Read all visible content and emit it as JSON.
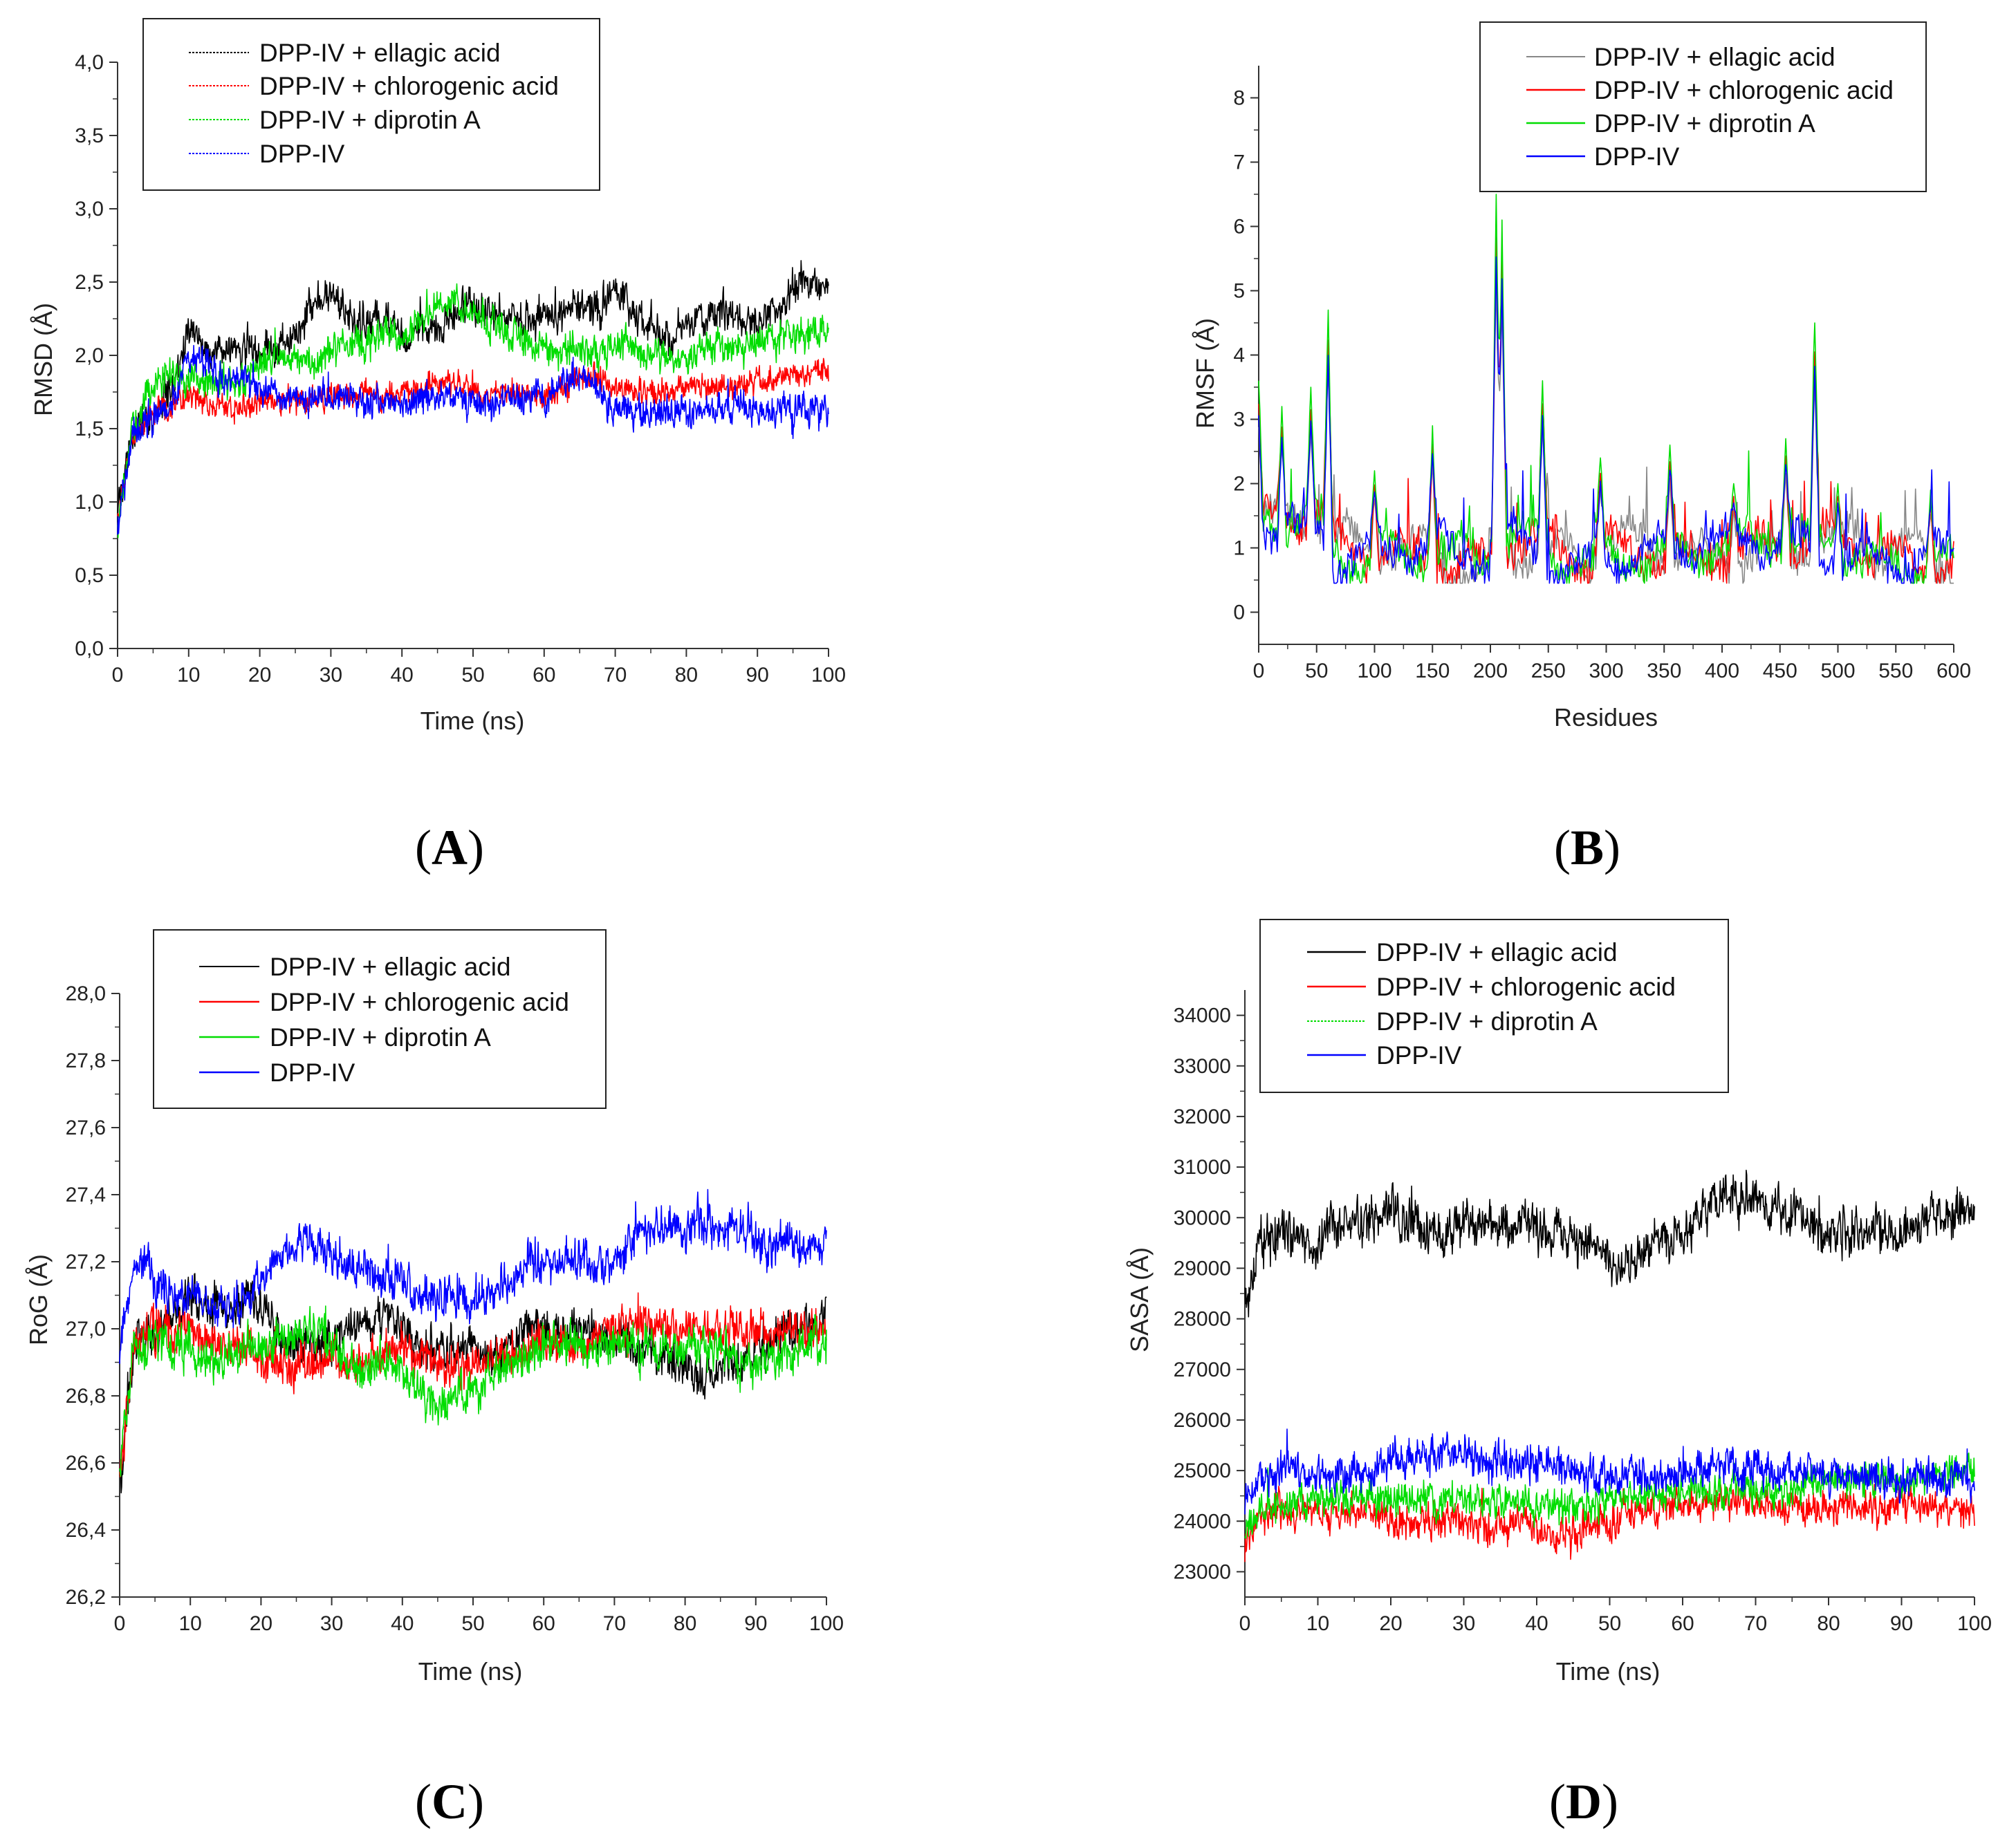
{
  "figure": {
    "panel_labels": [
      {
        "open": "(",
        "letter": "A",
        "close": ")"
      },
      {
        "open": "(",
        "letter": "B",
        "close": ")"
      },
      {
        "open": "(",
        "letter": "C",
        "close": ")"
      },
      {
        "open": "(",
        "letter": "D",
        "close": ")"
      }
    ]
  },
  "chart_data": [
    {
      "id": "A",
      "type": "line",
      "title": "",
      "xlabel": "Time (ns)",
      "ylabel": "RMSD (Å)",
      "xlim": [
        0,
        100
      ],
      "ylim": [
        0.0,
        4.0
      ],
      "xticks": [
        "0",
        "10",
        "20",
        "30",
        "40",
        "50",
        "60",
        "70",
        "80",
        "90",
        "100"
      ],
      "yticks": [
        "0,0",
        "0,5",
        "1,0",
        "1,5",
        "2,0",
        "2,5",
        "3,0",
        "3,5",
        "4,0"
      ],
      "legend": [
        "DPP-IV + ellagic acid",
        "DPP-IV + chlorogenic acid",
        "DPP-IV + diprotin A",
        "DPP-IV"
      ],
      "legend_position": "top-left",
      "x": [
        0,
        2,
        5,
        8,
        10,
        12,
        15,
        18,
        20,
        22,
        25,
        28,
        30,
        32,
        35,
        38,
        40,
        42,
        45,
        48,
        50,
        52,
        55,
        58,
        60,
        62,
        65,
        68,
        70,
        72,
        75,
        78,
        80,
        82,
        85,
        88,
        90,
        92,
        95,
        98,
        100
      ],
      "series": [
        {
          "name": "DPP-IV + ellagic acid",
          "color": "#000000",
          "noise": 0.1,
          "values": [
            0.85,
            1.45,
            1.6,
            1.8,
            2.2,
            2.05,
            2.0,
            2.05,
            2.0,
            2.05,
            2.1,
            2.4,
            2.45,
            2.3,
            2.2,
            2.25,
            2.1,
            2.15,
            2.2,
            2.3,
            2.35,
            2.25,
            2.3,
            2.25,
            2.3,
            2.25,
            2.35,
            2.3,
            2.45,
            2.35,
            2.2,
            2.1,
            2.2,
            2.25,
            2.3,
            2.25,
            2.2,
            2.3,
            2.45,
            2.5,
            2.45
          ]
        },
        {
          "name": "DPP-IV + chlorogenic acid",
          "color": "#ff0000",
          "noise": 0.07,
          "values": [
            0.85,
            1.45,
            1.6,
            1.65,
            1.7,
            1.68,
            1.65,
            1.66,
            1.7,
            1.7,
            1.68,
            1.7,
            1.72,
            1.7,
            1.75,
            1.72,
            1.75,
            1.78,
            1.8,
            1.82,
            1.75,
            1.72,
            1.75,
            1.72,
            1.72,
            1.75,
            1.85,
            1.85,
            1.8,
            1.78,
            1.75,
            1.75,
            1.78,
            1.8,
            1.78,
            1.8,
            1.82,
            1.85,
            1.88,
            1.9,
            1.9
          ]
        },
        {
          "name": "DPP-IV + diprotin A",
          "color": "#00dd00",
          "noise": 0.09,
          "values": [
            0.85,
            1.5,
            1.8,
            1.85,
            1.85,
            1.8,
            1.8,
            1.85,
            1.95,
            2.0,
            1.95,
            1.95,
            2.0,
            2.05,
            2.1,
            2.15,
            2.1,
            2.2,
            2.35,
            2.35,
            2.3,
            2.2,
            2.15,
            2.1,
            2.05,
            2.05,
            2.05,
            2.0,
            2.05,
            2.05,
            2.0,
            1.95,
            2.0,
            2.05,
            2.05,
            2.05,
            2.05,
            2.1,
            2.15,
            2.15,
            2.15
          ]
        },
        {
          "name": "DPP-IV",
          "color": "#0000ff",
          "noise": 0.09,
          "values": [
            0.85,
            1.45,
            1.6,
            1.7,
            2.0,
            1.95,
            1.85,
            1.8,
            1.75,
            1.75,
            1.7,
            1.72,
            1.7,
            1.72,
            1.68,
            1.72,
            1.65,
            1.7,
            1.7,
            1.68,
            1.7,
            1.65,
            1.7,
            1.72,
            1.75,
            1.78,
            1.9,
            1.75,
            1.6,
            1.62,
            1.6,
            1.62,
            1.6,
            1.62,
            1.65,
            1.62,
            1.6,
            1.62,
            1.62,
            1.62,
            1.62
          ]
        }
      ]
    },
    {
      "id": "B",
      "type": "line",
      "title": "",
      "xlabel": "Residues",
      "ylabel": "RMSF (Å)",
      "xlim": [
        0,
        600
      ],
      "ylim": [
        -0.5,
        8.5
      ],
      "xticks": [
        "0",
        "50",
        "100",
        "150",
        "200",
        "250",
        "300",
        "350",
        "400",
        "450",
        "500",
        "550",
        "600"
      ],
      "yticks": [
        "0",
        "1",
        "2",
        "3",
        "4",
        "5",
        "6",
        "7",
        "8"
      ],
      "legend": [
        "DPP-IV + ellagic acid",
        "DPP-IV + chlorogenic acid",
        "DPP-IV + diprotin A",
        "DPP-IV"
      ],
      "legend_position": "top-right",
      "baseline": 1.0,
      "peaks": [
        {
          "residue": 0,
          "value": 3.6
        },
        {
          "residue": 20,
          "value": 3.2
        },
        {
          "residue": 45,
          "value": 3.5
        },
        {
          "residue": 60,
          "value": 4.7
        },
        {
          "residue": 100,
          "value": 2.2
        },
        {
          "residue": 150,
          "value": 2.9
        },
        {
          "residue": 205,
          "value": 6.5
        },
        {
          "residue": 210,
          "value": 6.1
        },
        {
          "residue": 245,
          "value": 3.6
        },
        {
          "residue": 295,
          "value": 2.4
        },
        {
          "residue": 355,
          "value": 2.6
        },
        {
          "residue": 410,
          "value": 2.0
        },
        {
          "residue": 455,
          "value": 2.7
        },
        {
          "residue": 480,
          "value": 4.5
        },
        {
          "residue": 500,
          "value": 2.0
        },
        {
          "residue": 580,
          "value": 1.9
        }
      ],
      "series": [
        {
          "name": "DPP-IV + ellagic acid",
          "color": "#888888",
          "noise": 0.15
        },
        {
          "name": "DPP-IV + chlorogenic acid",
          "color": "#ff0000",
          "noise": 0.15
        },
        {
          "name": "DPP-IV + diprotin A",
          "color": "#00dd00",
          "noise": 0.15
        },
        {
          "name": "DPP-IV",
          "color": "#0000ff",
          "noise": 0.15
        }
      ]
    },
    {
      "id": "C",
      "type": "line",
      "title": "",
      "xlabel": "Time (ns)",
      "ylabel": "RoG (Å)",
      "xlim": [
        0,
        100
      ],
      "ylim": [
        26.2,
        28.0
      ],
      "xticks": [
        "0",
        "10",
        "20",
        "30",
        "40",
        "50",
        "60",
        "70",
        "80",
        "90",
        "100"
      ],
      "yticks": [
        "26,2",
        "26,4",
        "26,6",
        "26,8",
        "27,0",
        "27,2",
        "27,4",
        "27,6",
        "27,8",
        "28,0"
      ],
      "legend": [
        "DPP-IV + ellagic acid",
        "DPP-IV + chlorogenic acid",
        "DPP-IV + diprotin A",
        "DPP-IV"
      ],
      "legend_position": "top-left",
      "x": [
        0,
        2,
        5,
        8,
        10,
        12,
        15,
        18,
        20,
        22,
        25,
        28,
        30,
        32,
        35,
        38,
        40,
        42,
        45,
        48,
        50,
        52,
        55,
        58,
        60,
        62,
        65,
        68,
        70,
        72,
        75,
        78,
        80,
        82,
        85,
        88,
        90,
        92,
        95,
        98,
        100
      ],
      "series": [
        {
          "name": "DPP-IV + ellagic acid",
          "color": "#000000",
          "noise": 0.05,
          "values": [
            26.5,
            26.95,
            27.0,
            27.05,
            27.1,
            27.05,
            27.05,
            27.1,
            27.05,
            27.0,
            26.95,
            26.95,
            26.95,
            27.0,
            27.0,
            27.05,
            27.0,
            26.95,
            26.95,
            26.95,
            26.95,
            26.9,
            26.95,
            27.0,
            27.0,
            27.0,
            27.0,
            27.0,
            27.0,
            26.95,
            26.95,
            26.9,
            26.9,
            26.85,
            26.9,
            26.9,
            26.95,
            26.95,
            27.0,
            27.0,
            27.05
          ]
        },
        {
          "name": "DPP-IV + chlorogenic acid",
          "color": "#ff0000",
          "noise": 0.05,
          "values": [
            26.55,
            26.95,
            27.0,
            27.0,
            27.0,
            26.95,
            26.95,
            26.95,
            26.9,
            26.9,
            26.88,
            26.9,
            26.92,
            26.9,
            26.9,
            26.95,
            26.95,
            26.92,
            26.9,
            26.9,
            26.88,
            26.9,
            26.92,
            26.95,
            26.95,
            26.95,
            26.95,
            26.98,
            27.0,
            27.0,
            27.0,
            27.0,
            27.0,
            27.0,
            27.0,
            27.0,
            27.0,
            27.0,
            27.0,
            27.0,
            27.0
          ]
        },
        {
          "name": "DPP-IV + diprotin A",
          "color": "#00dd00",
          "noise": 0.05,
          "values": [
            26.6,
            26.95,
            26.95,
            26.95,
            26.95,
            26.9,
            26.9,
            26.95,
            26.95,
            26.95,
            27.0,
            27.0,
            26.95,
            26.9,
            26.9,
            26.9,
            26.88,
            26.82,
            26.78,
            26.8,
            26.82,
            26.85,
            26.9,
            26.92,
            26.95,
            26.95,
            26.95,
            26.95,
            26.95,
            26.95,
            26.95,
            26.95,
            26.95,
            26.95,
            26.95,
            26.9,
            26.9,
            26.9,
            26.9,
            26.95,
            26.95
          ]
        },
        {
          "name": "DPP-IV",
          "color": "#0000ff",
          "noise": 0.05,
          "values": [
            26.95,
            27.2,
            27.15,
            27.1,
            27.1,
            27.1,
            27.05,
            27.1,
            27.15,
            27.2,
            27.25,
            27.25,
            27.2,
            27.2,
            27.18,
            27.15,
            27.15,
            27.1,
            27.1,
            27.1,
            27.08,
            27.1,
            27.15,
            27.2,
            27.2,
            27.2,
            27.2,
            27.18,
            27.2,
            27.25,
            27.3,
            27.3,
            27.3,
            27.32,
            27.3,
            27.3,
            27.28,
            27.25,
            27.25,
            27.25,
            27.25
          ]
        }
      ]
    },
    {
      "id": "D",
      "type": "line",
      "title": "",
      "xlabel": "Time (ns)",
      "ylabel": "SASA (Å)",
      "xlim": [
        0,
        100
      ],
      "ylim": [
        22500,
        34500
      ],
      "xticks": [
        "0",
        "10",
        "20",
        "30",
        "40",
        "50",
        "60",
        "70",
        "80",
        "90",
        "100"
      ],
      "yticks": [
        "23000",
        "24000",
        "25000",
        "26000",
        "27000",
        "28000",
        "29000",
        "30000",
        "31000",
        "32000",
        "33000",
        "34000"
      ],
      "legend": [
        "DPP-IV + ellagic acid",
        "DPP-IV + chlorogenic acid",
        "DPP-IV + diprotin A",
        "DPP-IV"
      ],
      "legend_position": "top-left",
      "x": [
        0,
        2,
        5,
        8,
        10,
        12,
        15,
        18,
        20,
        22,
        25,
        28,
        30,
        32,
        35,
        38,
        40,
        42,
        45,
        48,
        50,
        52,
        55,
        58,
        60,
        62,
        65,
        68,
        70,
        72,
        75,
        78,
        80,
        82,
        85,
        88,
        90,
        92,
        95,
        98,
        100
      ],
      "series": [
        {
          "name": "DPP-IV + ellagic acid",
          "color": "#000000",
          "noise": 380,
          "values": [
            28200,
            29500,
            29700,
            29600,
            29500,
            29800,
            29900,
            29900,
            30100,
            29900,
            29800,
            29800,
            30000,
            29900,
            29800,
            29900,
            29700,
            29700,
            29500,
            29300,
            29200,
            29000,
            29400,
            29500,
            29700,
            30000,
            30400,
            30500,
            30400,
            30300,
            30000,
            29800,
            29700,
            29800,
            29700,
            29700,
            29600,
            29800,
            30000,
            30100,
            30200
          ]
        },
        {
          "name": "DPP-IV + chlorogenic acid",
          "color": "#ff0000",
          "noise": 280,
          "values": [
            23500,
            24100,
            24200,
            24200,
            24200,
            24100,
            24200,
            24200,
            24000,
            24000,
            24000,
            24000,
            24000,
            23900,
            23900,
            23900,
            23800,
            23800,
            23800,
            23900,
            24000,
            24100,
            24200,
            24300,
            24400,
            24400,
            24400,
            24400,
            24300,
            24300,
            24300,
            24200,
            24200,
            24300,
            24300,
            24300,
            24300,
            24300,
            24300,
            24200,
            24200
          ]
        },
        {
          "name": "DPP-IV + diprotin A",
          "color": "#00dd00",
          "noise": 280,
          "values": [
            23800,
            24300,
            24300,
            24400,
            24400,
            24400,
            24500,
            24500,
            24400,
            24400,
            24400,
            24400,
            24500,
            24400,
            24400,
            24400,
            24300,
            24300,
            24300,
            24400,
            24400,
            24400,
            24500,
            24500,
            24500,
            24500,
            24600,
            24700,
            24600,
            24600,
            24700,
            24800,
            24800,
            24900,
            24800,
            24800,
            24800,
            24800,
            24900,
            25000,
            25000
          ]
        },
        {
          "name": "DPP-IV",
          "color": "#0000ff",
          "noise": 300,
          "values": [
            24500,
            24900,
            25000,
            25000,
            24900,
            24900,
            25000,
            25000,
            25300,
            25200,
            25300,
            25300,
            25300,
            25200,
            25200,
            25100,
            25200,
            25100,
            25000,
            25000,
            24900,
            24800,
            24900,
            24900,
            25000,
            25000,
            25000,
            25100,
            25100,
            25000,
            25000,
            25000,
            24900,
            24900,
            24900,
            24900,
            24800,
            24900,
            24800,
            24800,
            24800
          ]
        }
      ]
    }
  ]
}
